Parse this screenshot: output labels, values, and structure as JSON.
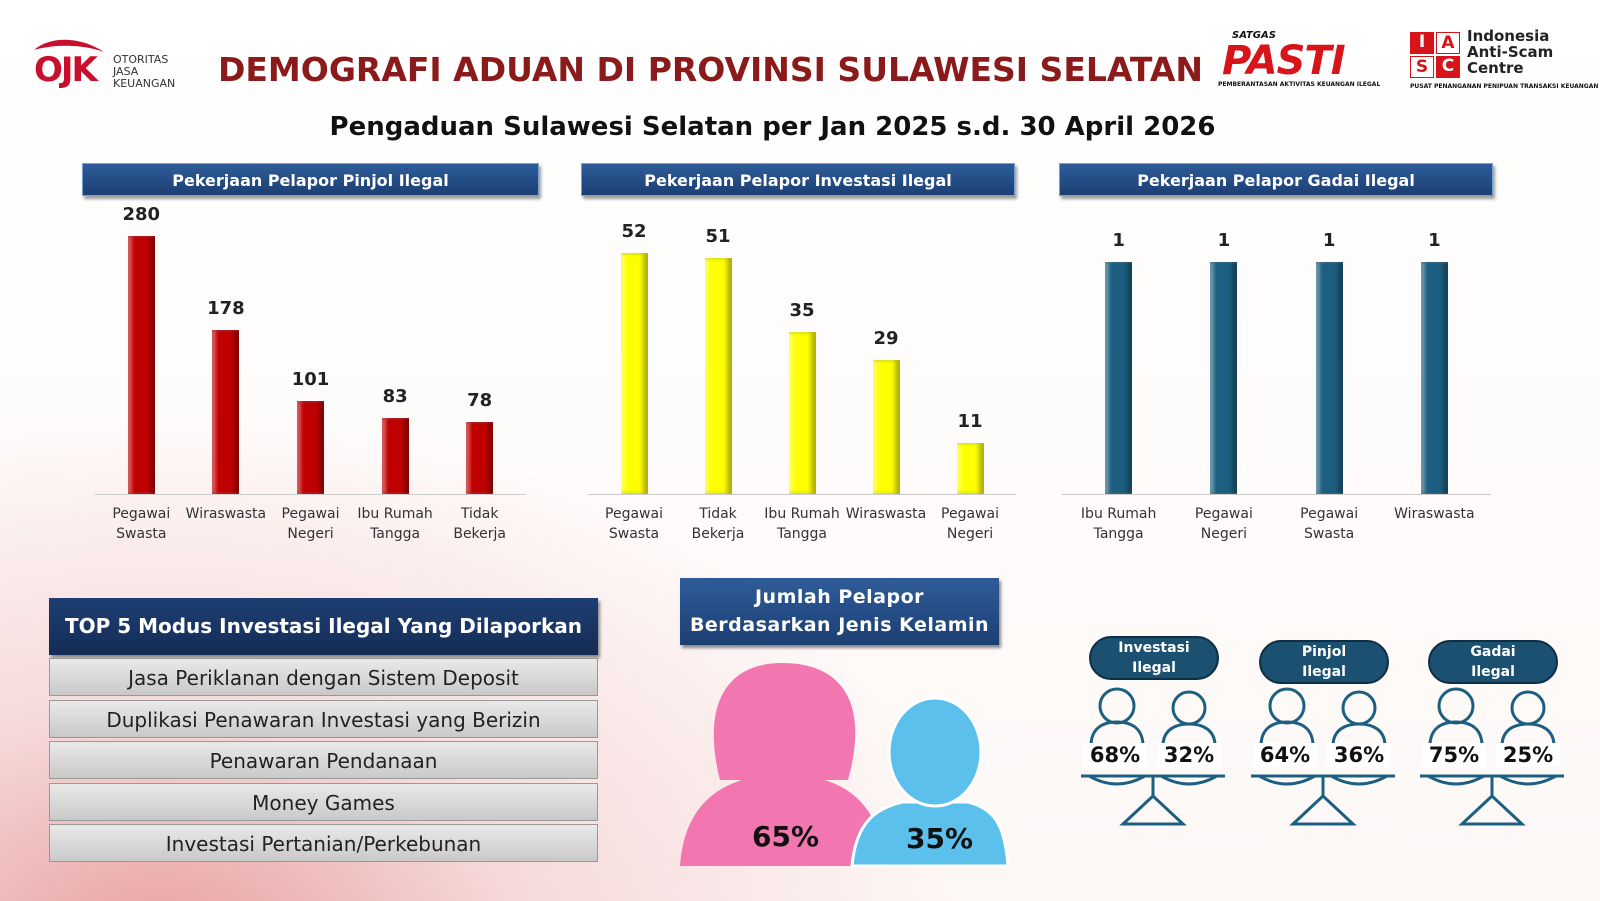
{
  "ojk_logo": {
    "mark": "OJK",
    "lines": [
      "OTORITAS",
      "JASA",
      "KEUANGAN"
    ]
  },
  "pasti_logo": {
    "top": "SATGAS",
    "mark": "PASTI",
    "bottom": "PEMBERANTASAN AKTIVITAS KEUANGAN ILEGAL"
  },
  "iasc_logo": {
    "letters": [
      "I",
      "A",
      "S",
      "C"
    ],
    "lines": [
      "Indonesia",
      "Anti-Scam",
      "Centre"
    ],
    "bottom": "PUSAT PENANGANAN PENIPUAN TRANSAKSI KEUANGAN"
  },
  "title": "DEMOGRAFI ADUAN DI PROVINSI SULAWESI SELATAN",
  "subtitle": "Pengaduan Sulawesi Selatan per Jan 2025 s.d. 30 April 2026",
  "chart_data": [
    {
      "type": "bar",
      "title": "Pekerjaan Pelapor Pinjol Ilegal",
      "categories": [
        "Pegawai Swasta",
        "Wiraswasta",
        "Pegawai Negeri",
        "Ibu Rumah Tangga",
        "Tidak Bekerja"
      ],
      "values": [
        280,
        178,
        101,
        83,
        78
      ],
      "color": "#c00000"
    },
    {
      "type": "bar",
      "title": "Pekerjaan Pelapor Investasi Ilegal",
      "categories": [
        "Pegawai Swasta",
        "Tidak Bekerja",
        "Ibu Rumah Tangga",
        "Wiraswasta",
        "Pegawai Negeri"
      ],
      "values": [
        52,
        51,
        35,
        29,
        11
      ],
      "color": "#ffff00"
    },
    {
      "type": "bar",
      "title": "Pekerjaan Pelapor Gadai Ilegal",
      "categories": [
        "Ibu Rumah Tangga",
        "Pegawai Negeri",
        "Pegawai Swasta",
        "Wiraswasta"
      ],
      "values": [
        1,
        1,
        1,
        1
      ],
      "color": "#1c5f80"
    }
  ],
  "modus": {
    "title": "TOP 5 Modus Investasi Ilegal Yang Dilaporkan",
    "items": [
      "Jasa Periklanan dengan Sistem Deposit",
      "Duplikasi Penawaran Investasi yang Berizin",
      "Penawaran Pendanaan",
      "Money Games",
      "Investasi Pertanian/Perkebunan"
    ]
  },
  "gender": {
    "title_lines": [
      "Jumlah Pelapor",
      "Berdasarkan Jenis Kelamin"
    ],
    "female": "65%",
    "male": "35%"
  },
  "gender_by_category": [
    {
      "label": "Investasi Ilegal",
      "female": "68%",
      "male": "32%"
    },
    {
      "label": "Pinjol Ilegal",
      "female": "64%",
      "male": "36%"
    },
    {
      "label": "Gadai Ilegal",
      "female": "75%",
      "male": "25%"
    }
  ]
}
